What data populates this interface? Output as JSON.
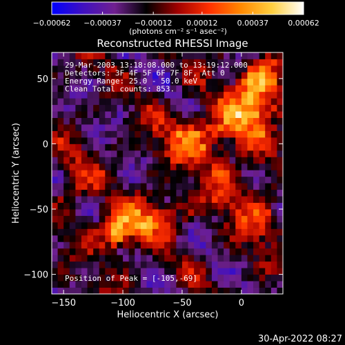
{
  "chart_data": {
    "type": "heatmap",
    "title": "Reconstructed RHESSI Image",
    "xlabel": "Heliocentric X (arcsec)",
    "ylabel": "Heliocentric Y (arcsec)",
    "xlim": [
      -160,
      35
    ],
    "ylim": [
      -115,
      70
    ],
    "x_ticks": [
      -150,
      -100,
      -50,
      0
    ],
    "y_ticks": [
      50,
      0,
      -50,
      -100
    ],
    "x_tick_labels": [
      "−150",
      "−100",
      "−50",
      "0"
    ],
    "y_tick_labels": [
      "50",
      "0",
      "−50",
      "−100"
    ],
    "colorbar": {
      "range": [
        -0.00062,
        0.00062
      ],
      "ticks": [
        -0.00062,
        -0.00037,
        -0.00012,
        0.00012,
        0.00037,
        0.00062
      ],
      "tick_labels": [
        "−0.00062",
        "−0.00037",
        "−0.00012",
        "0.00012",
        "0.00037",
        "0.00062"
      ],
      "units_label": "(photons cm⁻² s⁻¹ asec⁻²)",
      "colormap": [
        "#0000ff",
        "#4010c0",
        "#702090",
        "#000000",
        "#a00000",
        "#ff3000",
        "#ff8800",
        "#ffd040",
        "#ffffff"
      ]
    },
    "peak": [
      -105,
      -69
    ],
    "sources": [
      {
        "x": -105,
        "y": -69,
        "amp": 0.00062,
        "sx": 13,
        "sy": 10
      },
      {
        "x": -75,
        "y": -55,
        "amp": 0.0004,
        "sx": 16,
        "sy": 10
      },
      {
        "x": -35,
        "y": 5,
        "amp": 0.00045,
        "sx": 25,
        "sy": 14
      },
      {
        "x": 10,
        "y": 28,
        "amp": 0.00052,
        "sx": 15,
        "sy": 14
      },
      {
        "x": 18,
        "y": 50,
        "amp": 0.0005,
        "sx": 12,
        "sy": 10
      },
      {
        "x": -10,
        "y": -35,
        "amp": 0.00025,
        "sx": 20,
        "sy": 14
      },
      {
        "x": -140,
        "y": -30,
        "amp": 0.00018,
        "sx": 14,
        "sy": 18
      },
      {
        "x": 15,
        "y": -60,
        "amp": 0.00022,
        "sx": 14,
        "sy": 14
      }
    ],
    "info_lines": [
      "29-Mar-2003 13:18:08.000 to 13:19:12.000",
      "Detectors: 3F 4F 5F 6F 7F 8F, Att 0",
      "Energy Range: 25.0 - 50.0 keV",
      "Clean    Total counts: 853."
    ],
    "peak_label": "Position of Peak = [-105,-69]"
  },
  "footer": {
    "timestamp": "30-Apr-2022 08:27"
  },
  "colors": {
    "background": "#000000",
    "text": "#ffffff",
    "frame": "#ffffff"
  }
}
